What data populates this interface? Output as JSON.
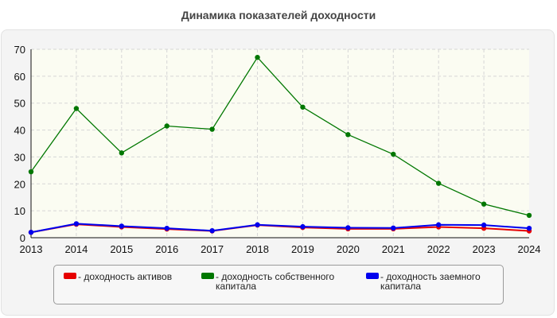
{
  "chart_data": {
    "type": "line",
    "title": "Динамика показателей доходности",
    "categories": [
      "2013",
      "2014",
      "2015",
      "2016",
      "2017",
      "2018",
      "2019",
      "2020",
      "2021",
      "2022",
      "2023",
      "2024"
    ],
    "yticks": [
      "0",
      "10",
      "20",
      "30",
      "40",
      "50",
      "60",
      "70"
    ],
    "ylim": [
      0,
      70
    ],
    "grid": true,
    "legend_position": "bottom",
    "series": [
      {
        "name": "- доходность активов",
        "color": "#e60000",
        "values": [
          2,
          5,
          4,
          3.2,
          2.5,
          4.7,
          3.8,
          3.3,
          3.3,
          4,
          3.5,
          2.5
        ]
      },
      {
        "name": "- доходность собственного капитала",
        "color": "#007700",
        "values": [
          24.5,
          48,
          31.5,
          41.5,
          40.3,
          67,
          48.5,
          38.3,
          31,
          20.2,
          12.5,
          8.3
        ]
      },
      {
        "name": "- доходность заемного капитала",
        "color": "#0000ee",
        "values": [
          2,
          5.2,
          4.3,
          3.5,
          2.6,
          4.8,
          4.1,
          3.7,
          3.6,
          4.8,
          4.7,
          3.5
        ]
      }
    ]
  }
}
